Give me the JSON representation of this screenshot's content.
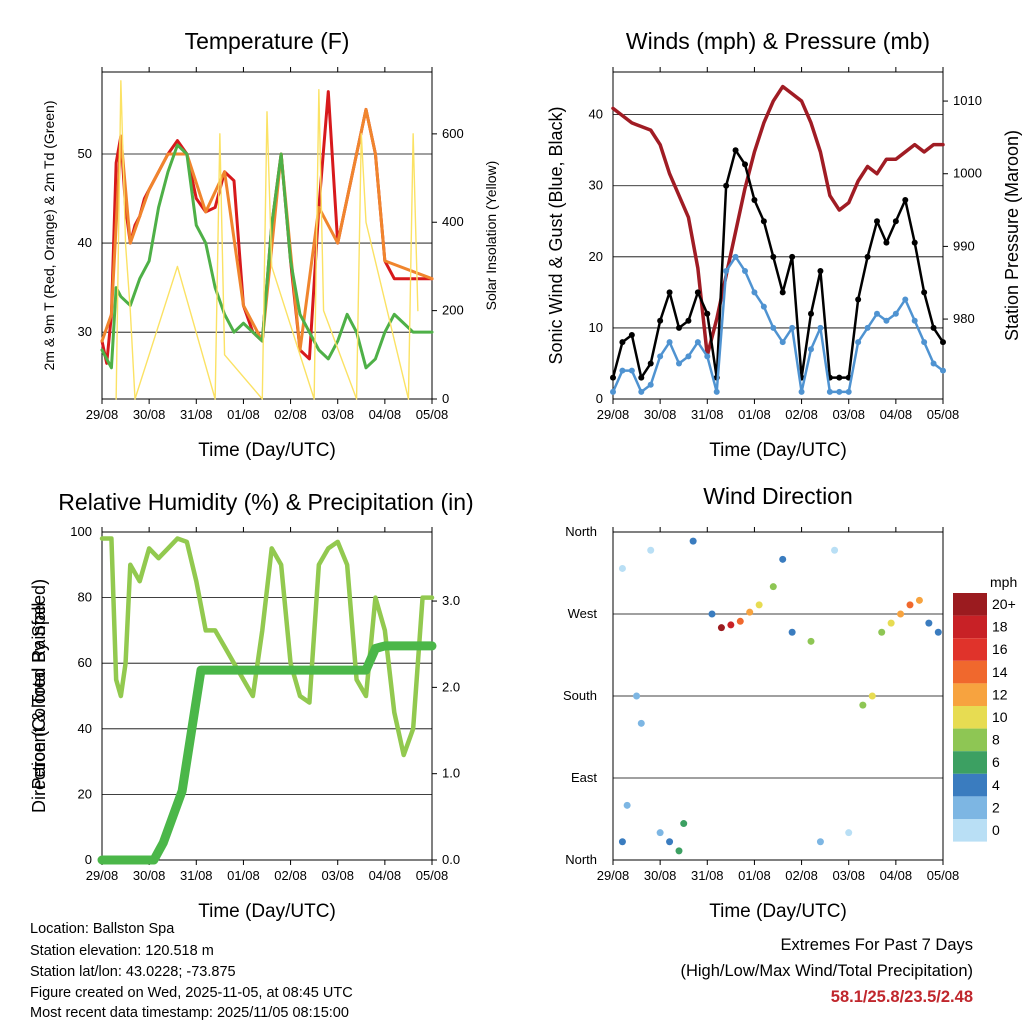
{
  "chart_data": [
    {
      "type": "line",
      "title": "Temperature (F)",
      "xlabel": "Time (Day/UTC)",
      "ylabel": "2m & 9m T (Red, Orange) & 2m Td (Green)",
      "y2label": "Solar Insolation (Yellow)",
      "categories": [
        "29/08",
        "30/08",
        "31/08",
        "01/08",
        "02/08",
        "03/08",
        "04/08",
        "05/08"
      ],
      "ylim": [
        22.5,
        59.2
      ],
      "yticks": [
        30,
        40,
        50
      ],
      "y2lim": [
        0,
        740
      ],
      "y2ticks": [
        0,
        200,
        400,
        600
      ],
      "series": [
        {
          "name": "2m T",
          "color": "#d7191c",
          "x": [
            0,
            0.1,
            0.2,
            0.3,
            0.4,
            0.5,
            0.6,
            0.7,
            0.8,
            0.9,
            1.0,
            1.2,
            1.4,
            1.6,
            1.8,
            2.0,
            2.2,
            2.4,
            2.6,
            2.8,
            3.0,
            3.2,
            3.4,
            3.6,
            3.8,
            4.0,
            4.2,
            4.4,
            4.6,
            4.8,
            5.0,
            5.2,
            5.4,
            5.6,
            5.8,
            6.0,
            6.2,
            6.4,
            6.6,
            6.8,
            7.0
          ],
          "values": [
            29,
            26.5,
            32,
            49,
            52,
            44,
            40,
            42,
            43,
            45,
            46,
            48,
            50,
            51.5,
            50,
            45,
            43.5,
            44,
            48,
            47,
            33,
            30,
            29,
            42,
            50,
            38,
            28,
            27,
            44,
            57,
            40,
            45,
            50,
            55,
            50,
            38,
            36,
            36,
            36,
            36,
            36
          ]
        },
        {
          "name": "9m T",
          "color": "#f0852d",
          "x": [
            0,
            0.2,
            0.4,
            0.6,
            1.0,
            1.4,
            1.8,
            2.2,
            2.6,
            3.0,
            3.4,
            3.8,
            4.2,
            4.6,
            5.0,
            5.4,
            5.6,
            5.8,
            6.0,
            7.0
          ],
          "values": [
            29,
            32,
            52,
            40,
            46,
            50,
            50,
            43.5,
            48,
            33,
            29,
            50,
            28,
            44,
            40,
            50,
            55,
            50,
            38,
            36
          ]
        },
        {
          "name": "2m Td",
          "color": "#4eb047",
          "x": [
            0,
            0.2,
            0.3,
            0.4,
            0.6,
            0.8,
            1.0,
            1.2,
            1.4,
            1.6,
            1.8,
            2.0,
            2.2,
            2.4,
            2.6,
            2.8,
            3.0,
            3.2,
            3.4,
            3.6,
            3.8,
            4.0,
            4.2,
            4.4,
            4.6,
            4.8,
            5.0,
            5.2,
            5.4,
            5.6,
            5.8,
            6.0,
            6.2,
            6.4,
            6.6,
            6.8,
            7.0
          ],
          "values": [
            28,
            26,
            35,
            34,
            33,
            36,
            38,
            44,
            48,
            51,
            50,
            42,
            40,
            35,
            32,
            30,
            31,
            30,
            29,
            42,
            50,
            38,
            32,
            30,
            28,
            27,
            29,
            32,
            30,
            26,
            27,
            30,
            32,
            31,
            30,
            30,
            30
          ]
        },
        {
          "name": "Solar Insolation",
          "color": "#fbe264",
          "axis": "y2",
          "x": [
            0.3,
            0.4,
            0.5,
            0.6,
            0.7,
            1.6,
            2.4,
            2.5,
            2.6,
            3.4,
            3.5,
            3.6,
            4.5,
            4.6,
            4.7,
            5.4,
            5.5,
            5.6,
            6.5,
            6.6,
            6.7
          ],
          "values": [
            0,
            720,
            350,
            200,
            0,
            300,
            0,
            600,
            100,
            0,
            650,
            300,
            0,
            700,
            200,
            0,
            600,
            400,
            0,
            600,
            200
          ]
        }
      ]
    },
    {
      "type": "scatter",
      "title": "Winds (mph) & Pressure (mb)",
      "xlabel": "Time (Day/UTC)",
      "ylabel": "Sonic Wind & Gust (Blue, Black)",
      "y2label": "Station Pressure (Maroon)",
      "categories": [
        "29/08",
        "30/08",
        "31/08",
        "01/08",
        "02/08",
        "03/08",
        "04/08",
        "05/08"
      ],
      "ylim": [
        0,
        46
      ],
      "yticks": [
        0,
        10,
        20,
        30,
        40
      ],
      "y2lim": [
        969,
        1014
      ],
      "y2ticks": [
        980,
        990,
        1000,
        1010
      ],
      "series": [
        {
          "name": "Pressure",
          "color": "#a01c24",
          "axis": "y2",
          "x": [
            0,
            0.2,
            0.4,
            0.8,
            1.0,
            1.2,
            1.6,
            1.8,
            2.0,
            2.2,
            2.4,
            2.6,
            2.8,
            3.0,
            3.2,
            3.4,
            3.6,
            3.8,
            4.0,
            4.2,
            4.4,
            4.6,
            4.8,
            5.0,
            5.2,
            5.4,
            5.6,
            5.8,
            6.0,
            6.2,
            6.4,
            6.6,
            6.8,
            7.0
          ],
          "values": [
            1009,
            1008,
            1007,
            1006,
            1004,
            1000,
            994,
            987,
            975,
            980,
            986,
            992,
            998,
            1003,
            1007,
            1010,
            1012,
            1011,
            1010,
            1007,
            1003,
            997,
            995,
            996,
            999,
            1001,
            1000,
            1002,
            1002,
            1003,
            1004,
            1003,
            1004,
            1004
          ]
        },
        {
          "name": "Gust",
          "color": "#000000",
          "x": [
            0,
            0.2,
            0.4,
            0.6,
            0.8,
            1.0,
            1.2,
            1.4,
            1.6,
            1.8,
            2.0,
            2.2,
            2.4,
            2.6,
            2.8,
            3.0,
            3.2,
            3.4,
            3.6,
            3.8,
            4.0,
            4.2,
            4.4,
            4.6,
            4.8,
            5.0,
            5.2,
            5.4,
            5.6,
            5.8,
            6.0,
            6.2,
            6.4,
            6.6,
            6.8,
            7.0
          ],
          "values": [
            3,
            8,
            9,
            3,
            5,
            11,
            15,
            10,
            11,
            15,
            12,
            3,
            30,
            35,
            33,
            28,
            25,
            20,
            15,
            20,
            3,
            12,
            18,
            3,
            3,
            3,
            14,
            20,
            25,
            22,
            25,
            28,
            22,
            15,
            10,
            8
          ]
        },
        {
          "name": "Wind",
          "color": "#4f93d1",
          "x": [
            0,
            0.2,
            0.4,
            0.6,
            0.8,
            1.0,
            1.2,
            1.4,
            1.6,
            1.8,
            2.0,
            2.2,
            2.4,
            2.6,
            2.8,
            3.0,
            3.2,
            3.4,
            3.6,
            3.8,
            4.0,
            4.2,
            4.4,
            4.6,
            4.8,
            5.0,
            5.2,
            5.4,
            5.6,
            5.8,
            6.0,
            6.2,
            6.4,
            6.6,
            6.8,
            7.0
          ],
          "values": [
            1,
            4,
            4,
            1,
            2,
            6,
            8,
            5,
            6,
            8,
            6,
            1,
            18,
            20,
            18,
            15,
            13,
            10,
            8,
            10,
            1,
            7,
            10,
            1,
            1,
            1,
            8,
            10,
            12,
            11,
            12,
            14,
            11,
            8,
            5,
            4
          ]
        }
      ]
    },
    {
      "type": "line",
      "title": "Relative Humidity (%) & Precipitation (in)",
      "xlabel": "Time (Day/UTC)",
      "ylabel": "Percent & Total Rainfall",
      "categories": [
        "29/08",
        "30/08",
        "31/08",
        "01/08",
        "02/08",
        "03/08",
        "04/08",
        "05/08"
      ],
      "ylim": [
        0,
        100
      ],
      "yticks": [
        0,
        20,
        40,
        60,
        80,
        100
      ],
      "y2lim": [
        0,
        3.8
      ],
      "y2ticks": [
        "0.0",
        "1.0",
        "2.0",
        "3.0"
      ],
      "series": [
        {
          "name": "Relative Humidity",
          "color": "#92c94f",
          "x": [
            0,
            0.2,
            0.3,
            0.4,
            0.5,
            0.6,
            0.8,
            1.0,
            1.2,
            1.4,
            1.6,
            1.8,
            2.0,
            2.2,
            2.4,
            2.6,
            2.8,
            3.0,
            3.2,
            3.4,
            3.6,
            3.8,
            4.0,
            4.2,
            4.4,
            4.6,
            4.8,
            5.0,
            5.2,
            5.4,
            5.6,
            5.8,
            6.0,
            6.2,
            6.4,
            6.6,
            6.8,
            7.0
          ],
          "values": [
            98,
            98,
            55,
            50,
            60,
            90,
            85,
            95,
            92,
            95,
            98,
            97,
            85,
            70,
            70,
            65,
            60,
            55,
            50,
            70,
            95,
            90,
            60,
            50,
            48,
            90,
            95,
            97,
            90,
            55,
            50,
            80,
            70,
            45,
            32,
            40,
            80,
            80
          ]
        },
        {
          "name": "Total Precipitation",
          "color": "#4bb749",
          "axis": "y2",
          "x": [
            0,
            0.6,
            1.1,
            1.3,
            1.5,
            1.7,
            1.9,
            2.1,
            2.3,
            3.0,
            4.0,
            5.0,
            5.6,
            5.8,
            6.0,
            7.0
          ],
          "values": [
            0,
            0,
            0,
            0.2,
            0.5,
            0.8,
            1.5,
            2.2,
            2.2,
            2.2,
            2.2,
            2.2,
            2.2,
            2.45,
            2.48,
            2.48
          ]
        }
      ]
    },
    {
      "type": "scatter",
      "title": "Wind Direction",
      "xlabel": "Time (Day/UTC)",
      "ylabel": "Direction (Colored By Speed)",
      "categories": [
        "29/08",
        "30/08",
        "31/08",
        "01/08",
        "02/08",
        "03/08",
        "04/08",
        "05/08"
      ],
      "yticklabels": [
        "North",
        "East",
        "South",
        "West",
        "North"
      ],
      "ylim": [
        0,
        360
      ],
      "colorbar": {
        "title": "mph",
        "labels": [
          "20+",
          "18",
          "16",
          "14",
          "12",
          "10",
          "8",
          "6",
          "4",
          "2",
          "0"
        ],
        "colors": [
          "#9b1b1f",
          "#c82126",
          "#e0332b",
          "#f0682d",
          "#f7a33f",
          "#e7dc52",
          "#8ec654",
          "#3ca062",
          "#3a7cbf",
          "#7db6e3",
          "#b9dff5"
        ]
      },
      "points": [
        {
          "x": 0.2,
          "y": 20,
          "speed": 4
        },
        {
          "x": 0.3,
          "y": 60,
          "speed": 2
        },
        {
          "x": 0.2,
          "y": 320,
          "speed": 0
        },
        {
          "x": 0.5,
          "y": 180,
          "speed": 2
        },
        {
          "x": 0.6,
          "y": 150,
          "speed": 2
        },
        {
          "x": 0.8,
          "y": 340,
          "speed": 0
        },
        {
          "x": 1.0,
          "y": 30,
          "speed": 2
        },
        {
          "x": 1.2,
          "y": 20,
          "speed": 4
        },
        {
          "x": 1.4,
          "y": 10,
          "speed": 6
        },
        {
          "x": 1.5,
          "y": 40,
          "speed": 6
        },
        {
          "x": 1.7,
          "y": 350,
          "speed": 4
        },
        {
          "x": 2.1,
          "y": 270,
          "speed": 4
        },
        {
          "x": 2.3,
          "y": 255,
          "speed": 20
        },
        {
          "x": 2.5,
          "y": 258,
          "speed": 18
        },
        {
          "x": 2.7,
          "y": 262,
          "speed": 14
        },
        {
          "x": 2.9,
          "y": 272,
          "speed": 12
        },
        {
          "x": 3.1,
          "y": 280,
          "speed": 10
        },
        {
          "x": 3.4,
          "y": 300,
          "speed": 8
        },
        {
          "x": 3.6,
          "y": 330,
          "speed": 4
        },
        {
          "x": 3.8,
          "y": 250,
          "speed": 4
        },
        {
          "x": 4.2,
          "y": 240,
          "speed": 8
        },
        {
          "x": 4.4,
          "y": 20,
          "speed": 2
        },
        {
          "x": 4.7,
          "y": 340,
          "speed": 0
        },
        {
          "x": 5.0,
          "y": 30,
          "speed": 0
        },
        {
          "x": 5.3,
          "y": 170,
          "speed": 8
        },
        {
          "x": 5.5,
          "y": 180,
          "speed": 10
        },
        {
          "x": 5.7,
          "y": 250,
          "speed": 8
        },
        {
          "x": 5.9,
          "y": 260,
          "speed": 10
        },
        {
          "x": 6.1,
          "y": 270,
          "speed": 12
        },
        {
          "x": 6.3,
          "y": 280,
          "speed": 14
        },
        {
          "x": 6.5,
          "y": 285,
          "speed": 12
        },
        {
          "x": 6.7,
          "y": 260,
          "speed": 4
        },
        {
          "x": 6.9,
          "y": 250,
          "speed": 4
        }
      ]
    }
  ],
  "footer": {
    "location": "Location: Ballston Spa",
    "elevation": "Station elevation: 120.518 m",
    "latlon": "Station lat/lon: 43.0228; -73.875",
    "created": "Figure created on Wed, 2025-11-05, at 08:45 UTC",
    "latest": "Most recent data timestamp: 2025/11/05 08:15:00"
  },
  "extremes": {
    "title": "Extremes For Past 7 Days",
    "subtitle": "(High/Low/Max Wind/Total Precipitation)",
    "values": "58.1/25.8/23.5/2.48"
  }
}
